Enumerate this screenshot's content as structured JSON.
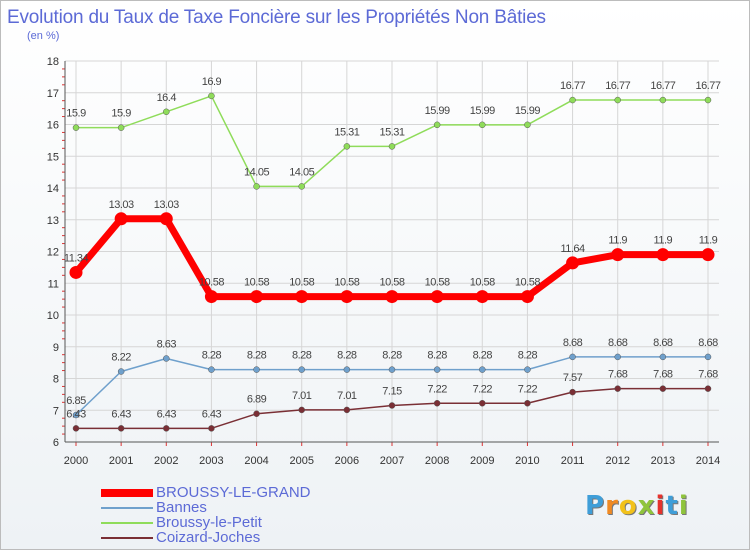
{
  "title": "Evolution du Taux de Taxe Foncière sur les Propriétés Non Bâties",
  "unit_label": "(en %)",
  "chart_data": {
    "type": "line",
    "categories": [
      "2000",
      "2001",
      "2002",
      "2003",
      "2004",
      "2005",
      "2006",
      "2007",
      "2008",
      "2009",
      "2010",
      "2011",
      "2012",
      "2013",
      "2014"
    ],
    "ylim": [
      6,
      18
    ],
    "yticks": [
      "6",
      "7",
      "8",
      "9",
      "10",
      "11",
      "12",
      "13",
      "14",
      "15",
      "16",
      "17",
      "18"
    ],
    "grid": true,
    "series": [
      {
        "name": "BROUSSY-LE-GRAND",
        "color": "#ff0000",
        "values": [
          11.34,
          13.03,
          13.03,
          10.58,
          10.58,
          10.58,
          10.58,
          10.58,
          10.58,
          10.58,
          10.58,
          11.64,
          11.9,
          11.9,
          11.9
        ],
        "labels": [
          "11.34",
          "13.03",
          "13.03",
          "10.58",
          "10.58",
          "10.58",
          "10.58",
          "10.58",
          "10.58",
          "10.58",
          "10.58",
          "11.64",
          "11.9",
          "11.9",
          "11.9"
        ]
      },
      {
        "name": "Bannes",
        "color": "#6fa0cc",
        "values": [
          6.85,
          8.22,
          8.63,
          8.28,
          8.28,
          8.28,
          8.28,
          8.28,
          8.28,
          8.28,
          8.28,
          8.68,
          8.68,
          8.68,
          8.68
        ],
        "labels": [
          "6.85",
          "8.22",
          "8.63",
          "8.28",
          "8.28",
          "8.28",
          "8.28",
          "8.28",
          "8.28",
          "8.28",
          "8.28",
          "8.68",
          "8.68",
          "8.68",
          "8.68"
        ]
      },
      {
        "name": "Broussy-le-Petit",
        "color": "#8fdc5a",
        "values": [
          15.9,
          15.9,
          16.4,
          16.9,
          14.05,
          14.05,
          15.31,
          15.31,
          15.99,
          15.99,
          15.99,
          16.77,
          16.77,
          16.77,
          16.77
        ],
        "labels": [
          "15.9",
          "15.9",
          "16.4",
          "16.9",
          "14.05",
          "14.05",
          "15.31",
          "15.31",
          "15.99",
          "15.99",
          "15.99",
          "16.77",
          "16.77",
          "16.77",
          "16.77"
        ]
      },
      {
        "name": "Coizard-Joches",
        "color": "#7a2f35",
        "values": [
          6.43,
          6.43,
          6.43,
          6.43,
          6.89,
          7.01,
          7.01,
          7.15,
          7.22,
          7.22,
          7.22,
          7.57,
          7.68,
          7.68,
          7.68
        ],
        "labels": [
          "6.43",
          "6.43",
          "6.43",
          "6.43",
          "6.89",
          "7.01",
          "7.01",
          "7.15",
          "7.22",
          "7.22",
          "7.22",
          "7.57",
          "7.68",
          "7.68",
          "7.68"
        ]
      }
    ]
  },
  "logo": {
    "letters": [
      "P",
      "r",
      "o",
      "x",
      "i",
      "t",
      "i"
    ],
    "colors": [
      "#3f9ed8",
      "#f08a23",
      "#f2c21a",
      "#8fc43c",
      "#e5322d",
      "#3f9ed8",
      "#8fc43c"
    ]
  }
}
